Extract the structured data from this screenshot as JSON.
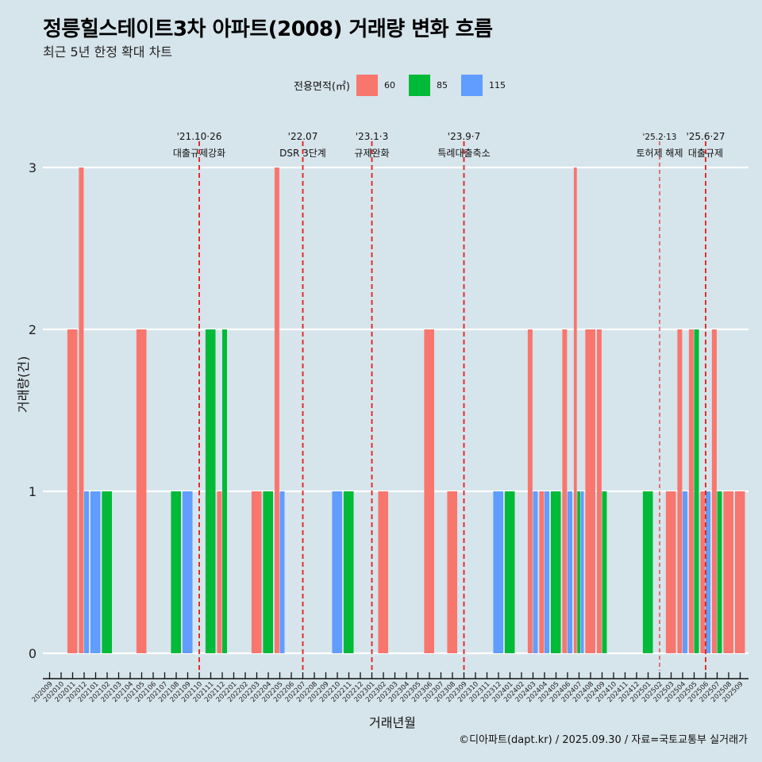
{
  "chart_data": {
    "type": "bar",
    "title": "정릉힐스테이트3차 아파트(2008) 거래량 변화 흐름",
    "subtitle": "최근 5년 한정 확대 차트",
    "xlabel": "거래년월",
    "ylabel": "거래량(건)",
    "ylim": [
      0,
      3
    ],
    "yticks": [
      "0",
      "1",
      "2",
      "3"
    ],
    "grid": true,
    "legend": {
      "title": "전용면적(㎡)",
      "position": "top",
      "entries": [
        {
          "label": "60",
          "color": "#f8766d"
        },
        {
          "label": "85",
          "color": "#00ba38"
        },
        {
          "label": "115",
          "color": "#619cff"
        }
      ]
    },
    "categories": [
      "202009",
      "202010",
      "202011",
      "202012",
      "202101",
      "202102",
      "202103",
      "202104",
      "202105",
      "202106",
      "202107",
      "202108",
      "202109",
      "202110",
      "202111",
      "202112",
      "202201",
      "202202",
      "202203",
      "202204",
      "202205",
      "202206",
      "202207",
      "202208",
      "202209",
      "202210",
      "202211",
      "202212",
      "202301",
      "202302",
      "202303",
      "202304",
      "202305",
      "202306",
      "202307",
      "202308",
      "202309",
      "202310",
      "202311",
      "202312",
      "202401",
      "202402",
      "202403",
      "202404",
      "202405",
      "202406",
      "202407",
      "202408",
      "202409",
      "202410",
      "202411",
      "202412",
      "202501",
      "202502",
      "202503",
      "202504",
      "202505",
      "202506",
      "202507",
      "202508",
      "202509"
    ],
    "series": [
      {
        "name": "60",
        "color": "#f8766d",
        "values": [
          0,
          0,
          2,
          3,
          0,
          0,
          0,
          0,
          2,
          0,
          0,
          0,
          0,
          0,
          0,
          1,
          0,
          0,
          1,
          0,
          3,
          0,
          0,
          0,
          0,
          0,
          0,
          0,
          0,
          1,
          0,
          0,
          0,
          2,
          0,
          1,
          0,
          0,
          0,
          0,
          0,
          0,
          2,
          1,
          0,
          2,
          3,
          2,
          2,
          0,
          0,
          0,
          0,
          0,
          1,
          2,
          2,
          1,
          2,
          1,
          1
        ]
      },
      {
        "name": "85",
        "color": "#00ba38",
        "values": [
          0,
          0,
          0,
          0,
          0,
          1,
          0,
          0,
          0,
          0,
          0,
          1,
          0,
          0,
          2,
          2,
          0,
          0,
          0,
          1,
          0,
          0,
          0,
          0,
          0,
          0,
          1,
          0,
          0,
          0,
          0,
          0,
          0,
          0,
          0,
          0,
          0,
          0,
          0,
          0,
          1,
          0,
          0,
          0,
          1,
          0,
          1,
          0,
          1,
          0,
          0,
          0,
          1,
          0,
          0,
          0,
          2,
          0,
          1,
          0,
          0
        ]
      },
      {
        "name": "115",
        "color": "#619cff",
        "values": [
          0,
          0,
          0,
          1,
          1,
          0,
          0,
          0,
          0,
          0,
          0,
          0,
          1,
          0,
          0,
          0,
          0,
          0,
          0,
          0,
          1,
          0,
          0,
          0,
          0,
          1,
          0,
          0,
          0,
          0,
          0,
          0,
          0,
          0,
          0,
          0,
          0,
          0,
          0,
          1,
          0,
          0,
          1,
          1,
          0,
          1,
          1,
          0,
          0,
          0,
          0,
          0,
          0,
          0,
          0,
          1,
          0,
          1,
          0,
          0,
          0
        ]
      }
    ],
    "annotations": [
      {
        "month": "202110",
        "date": "'21.10·26",
        "label": "대출규제강화",
        "style": "thick"
      },
      {
        "month": "202207",
        "date": "'22.07",
        "label": "DSR 3단계",
        "style": "thick"
      },
      {
        "month": "202301",
        "date": "'23.1·3",
        "label": "규제완화",
        "style": "thick"
      },
      {
        "month": "202309",
        "date": "'23.9·7",
        "label": "특례대출축소",
        "style": "thick"
      },
      {
        "month": "202502",
        "date": "'25.2·13",
        "label": "토허제 해제",
        "style": "thin"
      },
      {
        "month": "202506",
        "date": "'25.6·27",
        "label": "대출규제",
        "style": "thick"
      }
    ],
    "annotation_color": "#e41a1c"
  },
  "caption": "©디아파트(dapt.kr) / 2025.09.30 / 자료=국토교통부 실거래가"
}
